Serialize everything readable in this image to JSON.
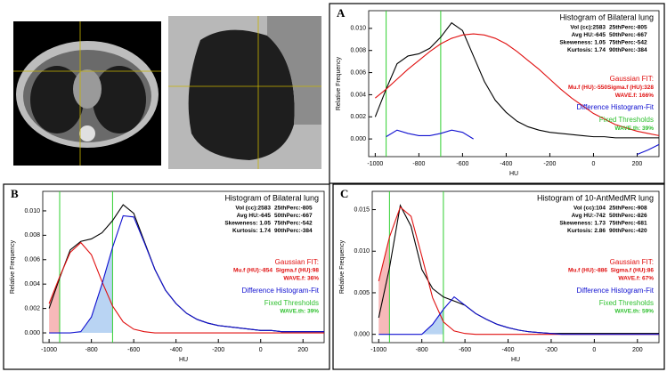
{
  "chart_data": [
    {
      "type": "line",
      "label": "A",
      "title": "Histogram of Bilateral lung",
      "x_label": "HU",
      "y_label": "Relative Frequency",
      "stats": [
        [
          "Vol (cc):2583",
          "25thPerc:-805"
        ],
        [
          "Avg HU:-645",
          "50thPerc:-667"
        ],
        [
          "Skeweness: 1.05",
          "75thPerc:-542"
        ],
        [
          "Kurtosis: 1.74",
          "90thPerc:-384"
        ]
      ],
      "fit_title": "Gaussian FIT:",
      "fit": [
        "Mu.f (HU):-550",
        "Sigma.f (HU):328",
        "WAVE.f: 166%"
      ],
      "threshold_title": "Fixed Thresholds",
      "threshold_text": "WAVE.th: 39%",
      "thresholds": [
        -950,
        -700
      ],
      "shade": false,
      "xlim": [
        -1030,
        300
      ],
      "xticks": [
        -1000,
        -800,
        -600,
        -400,
        -200,
        0,
        200
      ],
      "ylim": [
        -0.0016,
        0.0116
      ],
      "yticks": [
        {
          "value": 0,
          "label": "0.000"
        },
        {
          "value": 0.002,
          "label": "0.002"
        },
        {
          "value": 0.004,
          "label": "0.004"
        },
        {
          "value": 0.006,
          "label": "0.006"
        },
        {
          "value": 0.008,
          "label": "0.008"
        },
        {
          "value": 0.01,
          "label": "0.010"
        }
      ],
      "x": [
        -1000,
        -950,
        -900,
        -850,
        -800,
        -750,
        -700,
        -650,
        -600,
        -550,
        -500,
        -450,
        -400,
        -350,
        -300,
        -250,
        -200,
        -150,
        -100,
        -50,
        0,
        50,
        100,
        150,
        200,
        250,
        300
      ],
      "series": [
        {
          "color": "#000000",
          "values": [
            0.002,
            0.0045,
            0.0068,
            0.0075,
            0.0077,
            0.0082,
            0.0092,
            0.0105,
            0.0098,
            0.0075,
            0.0052,
            0.0035,
            0.0024,
            0.0016,
            0.0011,
            0.0008,
            0.0006,
            0.0005,
            0.0004,
            0.0003,
            0.0002,
            0.0002,
            0.0001,
            0.0001,
            0.0001,
            0.0001,
            0.0001
          ]
        },
        {
          "name": "Gaussian FIT:",
          "color": "#e01010",
          "values": [
            0.0037,
            0.0045,
            0.0054,
            0.0063,
            0.0071,
            0.0079,
            0.0086,
            0.0091,
            0.0094,
            0.0095,
            0.0094,
            0.0091,
            0.0086,
            0.0079,
            0.0071,
            0.0063,
            0.0054,
            0.0045,
            0.0037,
            0.003,
            0.0023,
            0.0018,
            0.0013,
            0.001,
            0.0007,
            0.0005,
            0.0003
          ]
        },
        {
          "name": "Difference Histogram-Fit",
          "color": "#1010d0",
          "values": [
            null,
            0.0002,
            0.0008,
            0.0005,
            0.0003,
            0.0003,
            0.0005,
            0.0008,
            0.0006,
            0,
            null,
            null,
            null,
            null,
            null,
            null,
            null,
            null,
            null,
            null,
            null,
            null,
            null,
            null,
            -0.0014,
            -0.001,
            -0.0005
          ]
        }
      ]
    },
    {
      "type": "line",
      "label": "B",
      "title": "Histogram of Bilateral lung",
      "x_label": "HU",
      "y_label": "Relative Frequency",
      "stats": [
        [
          "Vol (cc):2583",
          "25thPerc:-805"
        ],
        [
          "Avg HU:-645",
          "50thPerc:-667"
        ],
        [
          "Skeweness: 1.05",
          "75thPerc:-542"
        ],
        [
          "Kurtosis: 1.74",
          "90thPerc:-384"
        ]
      ],
      "fit_title": "Gaussian FIT:",
      "fit": [
        "Mu.f (HU):-854",
        "Sigma.f (HU):98",
        "WAVE.f: 36%"
      ],
      "threshold_title": "Fixed Thresholds",
      "threshold_text": "WAVE.th: 39%",
      "thresholds": [
        -950,
        -700
      ],
      "shade": true,
      "xlim": [
        -1030,
        300
      ],
      "xticks": [
        -1000,
        -800,
        -600,
        -400,
        -200,
        0,
        200
      ],
      "ylim": [
        -0.0008,
        0.0116
      ],
      "yticks": [
        {
          "value": 0,
          "label": "0.000"
        },
        {
          "value": 0.002,
          "label": "0.002"
        },
        {
          "value": 0.004,
          "label": "0.004"
        },
        {
          "value": 0.006,
          "label": "0.006"
        },
        {
          "value": 0.008,
          "label": "0.008"
        },
        {
          "value": 0.01,
          "label": "0.010"
        }
      ],
      "x": [
        -1000,
        -950,
        -900,
        -850,
        -800,
        -750,
        -700,
        -650,
        -600,
        -550,
        -500,
        -450,
        -400,
        -350,
        -300,
        -250,
        -200,
        -150,
        -100,
        -50,
        0,
        50,
        100,
        150,
        200,
        250,
        300
      ],
      "series": [
        {
          "color": "#000000",
          "values": [
            0.002,
            0.0045,
            0.0068,
            0.0075,
            0.0077,
            0.0082,
            0.0092,
            0.0105,
            0.0098,
            0.0075,
            0.0052,
            0.0035,
            0.0024,
            0.0016,
            0.0011,
            0.0008,
            0.0006,
            0.0005,
            0.0004,
            0.0003,
            0.0002,
            0.0002,
            0.0001,
            0.0001,
            0.0001,
            0.0001,
            0.0001
          ]
        },
        {
          "name": "Gaussian FIT:",
          "color": "#e01010",
          "values": [
            0.0024,
            0.0046,
            0.0066,
            0.0074,
            0.0064,
            0.0042,
            0.0022,
            0.0009,
            0.0003,
            0.0001,
            0,
            0,
            0,
            0,
            0,
            0,
            0,
            0,
            0,
            0,
            0,
            0,
            0,
            0,
            0,
            0,
            0
          ]
        },
        {
          "name": "Difference Histogram-Fit",
          "color": "#1010d0",
          "values": [
            0,
            0,
            0,
            0.0001,
            0.0013,
            0.004,
            0.007,
            0.0096,
            0.0095,
            0.0074,
            0.0052,
            0.0035,
            0.0024,
            0.0016,
            0.0011,
            0.0008,
            0.0006,
            0.0005,
            0.0004,
            0.0003,
            0.0002,
            0.0002,
            0.0001,
            0.0001,
            0.0001,
            0.0001,
            0.0001
          ]
        }
      ]
    },
    {
      "type": "line",
      "label": "C",
      "title": "Histogram of 10-AntMedMR lung",
      "x_label": "HU",
      "y_label": "Relative Frequency",
      "stats": [
        [
          "Vol (cc):104",
          "25thPerc:-908"
        ],
        [
          "Avg HU:-742",
          "50thPerc:-826"
        ],
        [
          "Skeweness: 1.73",
          "75thPerc:-681"
        ],
        [
          "Kurtosis: 2.86",
          "90thPerc:-420"
        ]
      ],
      "fit_title": "Gaussian FIT:",
      "fit": [
        "Mu.f (HU):-886",
        "Sigma.f (HU):86",
        "WAVE.f: 67%"
      ],
      "threshold_title": "Fixed Thresholds",
      "threshold_text": "WAVE.th: 59%",
      "thresholds": [
        -950,
        -700
      ],
      "shade": true,
      "xlim": [
        -1030,
        300
      ],
      "xticks": [
        -1000,
        -800,
        -600,
        -400,
        -200,
        0,
        200
      ],
      "ylim": [
        -0.001,
        0.0172
      ],
      "yticks": [
        {
          "value": 0,
          "label": "0.000"
        },
        {
          "value": 0.005,
          "label": "0.005"
        },
        {
          "value": 0.01,
          "label": "0.010"
        },
        {
          "value": 0.015,
          "label": "0.015"
        }
      ],
      "x": [
        -1000,
        -950,
        -900,
        -850,
        -800,
        -750,
        -700,
        -650,
        -600,
        -550,
        -500,
        -450,
        -400,
        -350,
        -300,
        -250,
        -200,
        -150,
        -100,
        -50,
        0,
        50,
        100,
        150,
        200,
        250,
        300
      ],
      "series": [
        {
          "color": "#000000",
          "values": [
            0.002,
            0.008,
            0.0155,
            0.013,
            0.0078,
            0.0055,
            0.0045,
            0.004,
            0.0035,
            0.0025,
            0.0018,
            0.0012,
            0.0008,
            0.0005,
            0.0003,
            0.0002,
            0.0001,
            0.0001,
            0.0001,
            0.0001,
            0.0001,
            0.0001,
            0.0001,
            0.0001,
            0.0001,
            0.0001,
            0.0001
          ]
        },
        {
          "name": "Gaussian FIT:",
          "color": "#e01010",
          "values": [
            0.0064,
            0.0117,
            0.0153,
            0.0142,
            0.0094,
            0.0044,
            0.0015,
            0.0004,
            0.0001,
            0,
            0,
            0,
            0,
            0,
            0,
            0,
            0,
            0,
            0,
            0,
            0,
            0,
            0,
            0,
            0,
            0,
            0
          ]
        },
        {
          "name": "Difference Histogram-Fit",
          "color": "#1010d0",
          "values": [
            0,
            0,
            0,
            0,
            0,
            0.0012,
            0.003,
            0.0045,
            0.0035,
            0.0025,
            0.0018,
            0.0012,
            0.0008,
            0.0005,
            0.0003,
            0.0002,
            0.0001,
            0,
            0,
            0,
            0,
            0,
            0,
            0,
            0,
            0,
            0
          ]
        }
      ]
    }
  ]
}
